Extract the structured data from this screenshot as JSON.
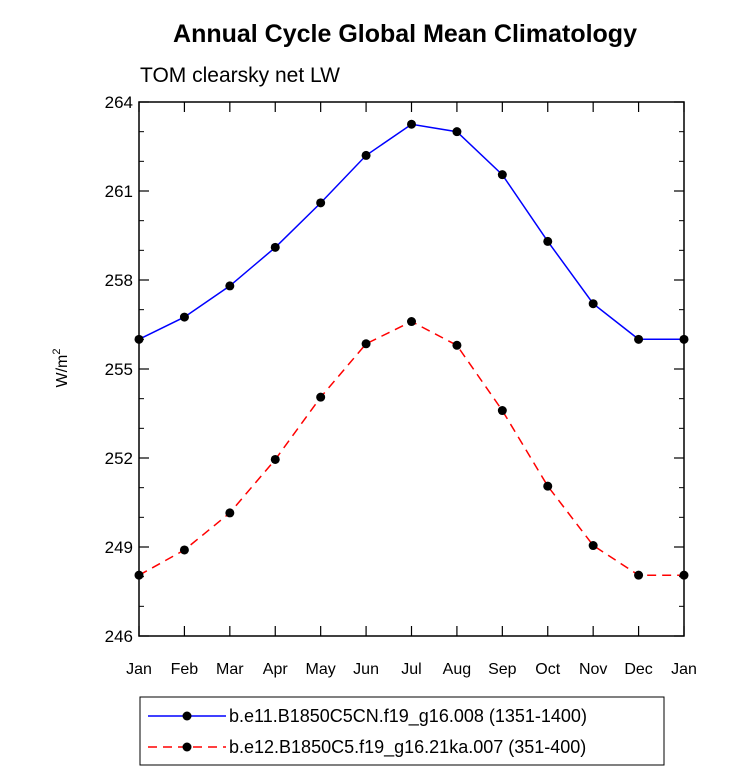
{
  "chart_data": {
    "type": "line",
    "title": "Annual Cycle Global Mean Climatology",
    "subtitle": "TOM clearsky net LW",
    "xlabel": "",
    "ylabel": "W/m",
    "ylabel_superscript": "2",
    "categories": [
      "Jan",
      "Feb",
      "Mar",
      "Apr",
      "May",
      "Jun",
      "Jul",
      "Aug",
      "Sep",
      "Oct",
      "Nov",
      "Dec",
      "Jan"
    ],
    "ylim": [
      246,
      264
    ],
    "yticks": [
      246,
      249,
      252,
      255,
      258,
      261,
      264
    ],
    "grid": false,
    "legend_position": "bottom",
    "series": [
      {
        "name": "b.e11.B1850C5CN.f19_g16.008 (1351-1400)",
        "color": "#0000ff",
        "dash": "solid",
        "marker": "filled-circle",
        "values": [
          256.0,
          256.75,
          257.8,
          259.1,
          260.6,
          262.2,
          263.25,
          263.0,
          261.55,
          259.3,
          257.2,
          256.0,
          256.0
        ]
      },
      {
        "name": "b.e12.B1850C5.f19_g16.21ka.007 (351-400)",
        "color": "#ff0000",
        "dash": "dashed",
        "marker": "filled-circle",
        "values": [
          248.05,
          248.9,
          250.15,
          251.95,
          254.05,
          255.85,
          256.6,
          255.8,
          253.6,
          251.05,
          249.05,
          248.05,
          248.05
        ]
      }
    ]
  }
}
